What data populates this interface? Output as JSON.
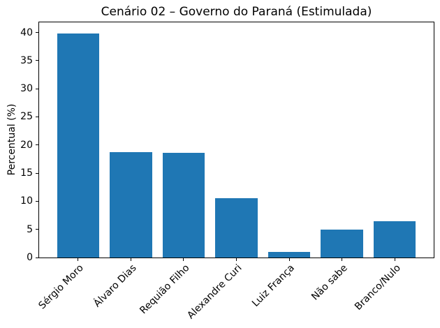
{
  "chart_data": {
    "type": "bar",
    "title": "Cenário 02 – Governo do Paraná (Estimulada)",
    "ylabel": "Percentual (%)",
    "xlabel": "",
    "categories": [
      "Sérgio Moro",
      "Álvaro Dias",
      "Requião Filho",
      "Alexandre Curi",
      "Luiz França",
      "Não sabe",
      "Branco/Nulo"
    ],
    "values": [
      39.8,
      18.7,
      18.6,
      10.5,
      1.0,
      5.0,
      6.4
    ],
    "yticks": [
      0,
      5,
      10,
      15,
      20,
      25,
      30,
      35,
      40
    ],
    "ylim": [
      0,
      41.8
    ],
    "bar_color": "#1f77b4",
    "axis_color": "#000000",
    "grid": false,
    "legend_position": "none"
  }
}
